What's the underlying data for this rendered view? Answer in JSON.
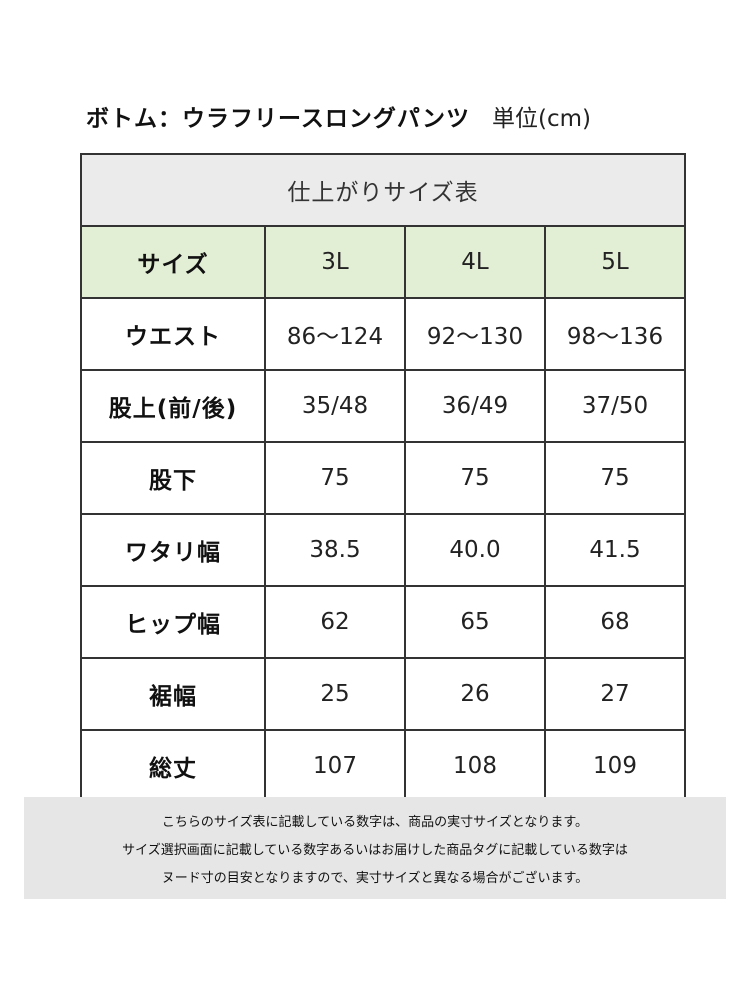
{
  "title": {
    "main": "ボトム：ウラフリースロングパンツ",
    "unit": "単位(cm)"
  },
  "table": {
    "caption": "仕上がりサイズ表",
    "header": {
      "label": "サイズ",
      "sizes": [
        "3L",
        "4L",
        "5L"
      ]
    },
    "rows": [
      {
        "label": "ウエスト",
        "values": [
          "86〜124",
          "92〜130",
          "98〜136"
        ]
      },
      {
        "label": "股上(前/後)",
        "values": [
          "35/48",
          "36/49",
          "37/50"
        ]
      },
      {
        "label": "股下",
        "values": [
          "75",
          "75",
          "75"
        ]
      },
      {
        "label": "ワタリ幅",
        "values": [
          "38.5",
          "40.0",
          "41.5"
        ]
      },
      {
        "label": "ヒップ幅",
        "values": [
          "62",
          "65",
          "68"
        ]
      },
      {
        "label": "裾幅",
        "values": [
          "25",
          "26",
          "27"
        ]
      },
      {
        "label": "総丈",
        "values": [
          "107",
          "108",
          "109"
        ]
      }
    ]
  },
  "note": {
    "lines": [
      "こちらのサイズ表に記載している数字は、商品の実寸サイズとなります。",
      "サイズ選択画面に記載している数字あるいはお届けした商品タグに記載している数字は",
      "ヌード寸の目安となりますので、実寸サイズと異なる場合がございます。"
    ]
  },
  "colors": {
    "header_row_bg": "#e3efd5",
    "caption_bg": "#ebebeb",
    "note_bg": "#e6e6e6",
    "border": "#333333"
  }
}
